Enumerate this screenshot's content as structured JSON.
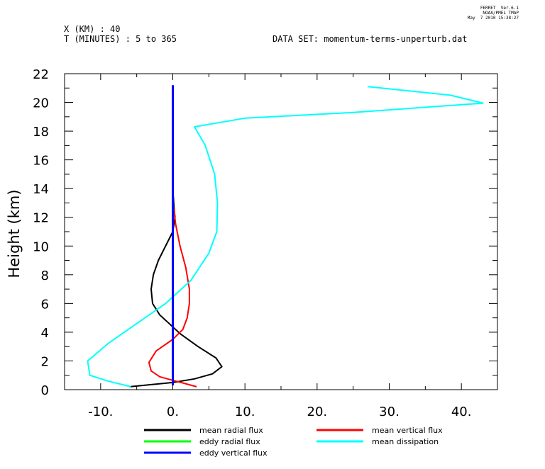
{
  "header": {
    "ferret_version": "FERRET  Ver.6.1",
    "ferret_org": "NOAA/PMEL TMAP",
    "ferret_date": "May  7 2010 15:38:27",
    "x_info": "X (KM) : 40",
    "t_info": "T (MINUTES) : 5 to 365",
    "dataset": "DATA SET: momentum-terms-unperturb.dat"
  },
  "chart_data": {
    "type": "line",
    "title": "",
    "xlabel": "",
    "ylabel": "Height (km)",
    "xlim": [
      -15,
      45
    ],
    "ylim": [
      0,
      22
    ],
    "x_ticks": [
      -10,
      0,
      10,
      20,
      30,
      40
    ],
    "x_tick_labels": [
      "-10.",
      "0.",
      "10.",
      "20.",
      "30.",
      "40."
    ],
    "y_ticks": [
      0,
      2,
      4,
      6,
      8,
      10,
      12,
      14,
      16,
      18,
      20,
      22
    ],
    "y_tick_labels": [
      "0",
      "2",
      "4",
      "6",
      "8",
      "10",
      "12",
      "14",
      "16",
      "18",
      "20",
      "22"
    ],
    "grid": false,
    "legend_position": "bottom",
    "series": [
      {
        "name": "mean radial flux",
        "color": "#000000",
        "points": [
          [
            -6,
            0.2
          ],
          [
            -3,
            0.35
          ],
          [
            0,
            0.5
          ],
          [
            3,
            0.75
          ],
          [
            5.5,
            1.1
          ],
          [
            6.8,
            1.6
          ],
          [
            6,
            2.2
          ],
          [
            3.5,
            3
          ],
          [
            1,
            3.9
          ],
          [
            -0.5,
            4.6
          ],
          [
            -1.8,
            5.2
          ],
          [
            -2.8,
            6
          ],
          [
            -3,
            7
          ],
          [
            -2.7,
            8
          ],
          [
            -2,
            9
          ],
          [
            -1,
            10
          ],
          [
            0,
            11
          ],
          [
            0.3,
            12
          ],
          [
            0.2,
            12.5
          ],
          [
            0,
            14
          ],
          [
            0,
            21
          ]
        ]
      },
      {
        "name": "mean vertical flux",
        "color": "#ff0000",
        "points": [
          [
            3.3,
            0.2
          ],
          [
            1.5,
            0.45
          ],
          [
            0,
            0.65
          ],
          [
            -1.8,
            0.9
          ],
          [
            -3,
            1.3
          ],
          [
            -3.3,
            1.9
          ],
          [
            -2.3,
            2.7
          ],
          [
            0,
            3.5
          ],
          [
            1.4,
            4.2
          ],
          [
            2,
            5
          ],
          [
            2.3,
            6
          ],
          [
            2.3,
            7
          ],
          [
            1.8,
            8.5
          ],
          [
            1,
            10
          ],
          [
            0.4,
            11.5
          ],
          [
            0.2,
            12.3
          ],
          [
            0,
            13
          ]
        ]
      },
      {
        "name": "eddy radial flux",
        "color": "#00ff00",
        "points": [
          [
            0,
            0.3
          ],
          [
            0,
            21
          ]
        ]
      },
      {
        "name": "mean dissipation",
        "color": "#00ffff",
        "points": [
          [
            -5.8,
            0.2
          ],
          [
            -9,
            0.6
          ],
          [
            -11.5,
            1
          ],
          [
            -11.8,
            2
          ],
          [
            -9,
            3.2
          ],
          [
            -5,
            4.6
          ],
          [
            -1,
            6
          ],
          [
            2.5,
            7.6
          ],
          [
            5,
            9.5
          ],
          [
            6.1,
            11
          ],
          [
            6.2,
            13
          ],
          [
            5.8,
            15
          ],
          [
            4.5,
            17
          ],
          [
            3,
            18.3
          ],
          [
            10,
            18.9
          ],
          [
            25,
            19.3
          ],
          [
            43,
            19.95
          ],
          [
            38.5,
            20.5
          ],
          [
            27,
            21.1
          ]
        ]
      },
      {
        "name": "eddy vertical flux",
        "color": "#0000ff",
        "points": [
          [
            0,
            0.3
          ],
          [
            0,
            21.2
          ]
        ]
      }
    ]
  }
}
